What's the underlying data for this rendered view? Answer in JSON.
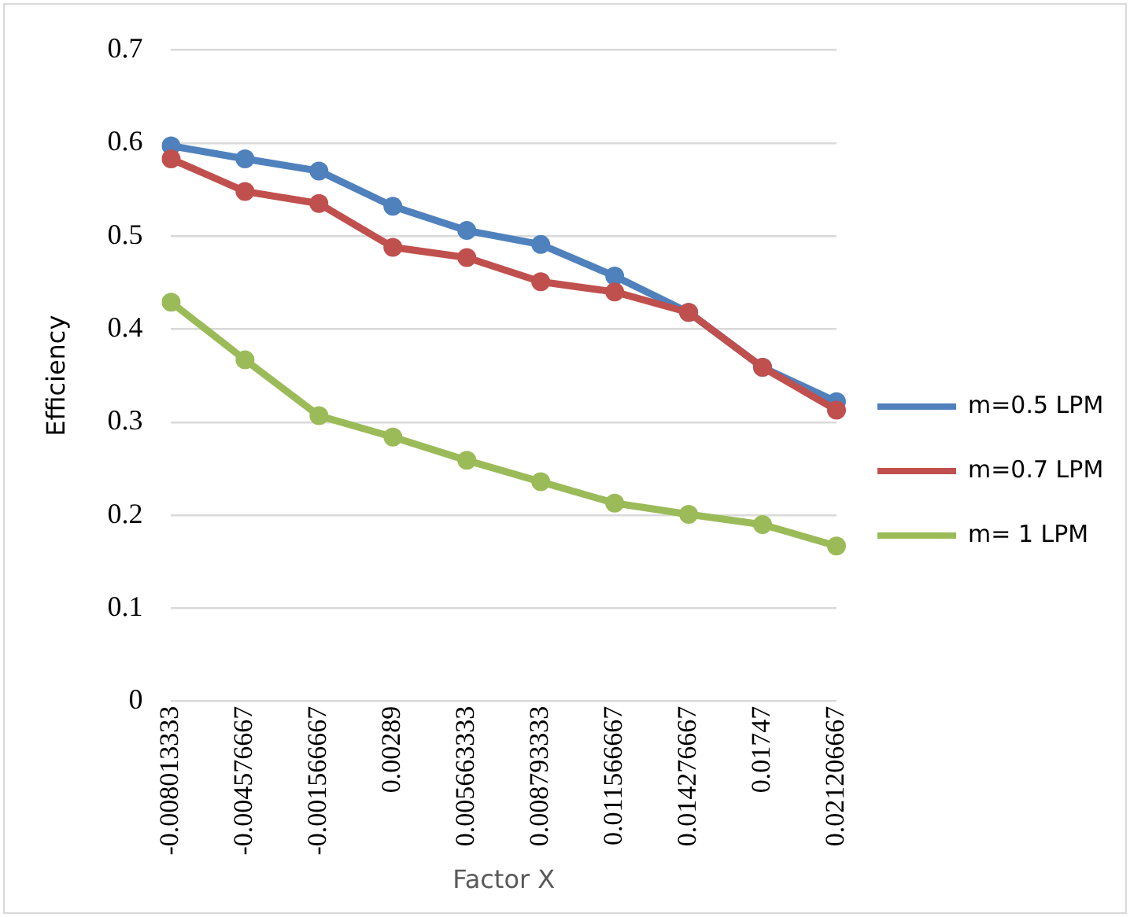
{
  "chart_data": {
    "type": "line",
    "xlabel": "Factor X",
    "ylabel": "Efficiency",
    "categories": [
      "-0.008013333",
      "-0.004576667",
      "-0.001566667",
      "0.00289",
      "0.005663333",
      "0.008793333",
      "0.011566667",
      "0.014276667",
      "0.01747",
      "0.021206667"
    ],
    "series": [
      {
        "name": "m=0.5 LPM",
        "color": "#4f81bd",
        "values": [
          0.597,
          0.583,
          0.57,
          0.532,
          0.506,
          0.491,
          0.457,
          0.418,
          0.359,
          0.322
        ]
      },
      {
        "name": "m=0.7 LPM",
        "color": "#c0504d",
        "values": [
          0.583,
          0.548,
          0.535,
          0.488,
          0.477,
          0.451,
          0.44,
          0.418,
          0.359,
          0.313
        ]
      },
      {
        "name": "m= 1 LPM",
        "color": "#9bbb59",
        "values": [
          0.429,
          0.367,
          0.307,
          0.284,
          0.259,
          0.236,
          0.213,
          0.201,
          0.19,
          0.167
        ]
      }
    ],
    "ylim": [
      0,
      0.7
    ],
    "yticks": [
      0,
      0.1,
      0.2,
      0.3,
      0.4,
      0.5,
      0.6,
      0.7
    ],
    "grid": "y",
    "legend": "right",
    "marker": "circle",
    "line_style": "solid"
  }
}
